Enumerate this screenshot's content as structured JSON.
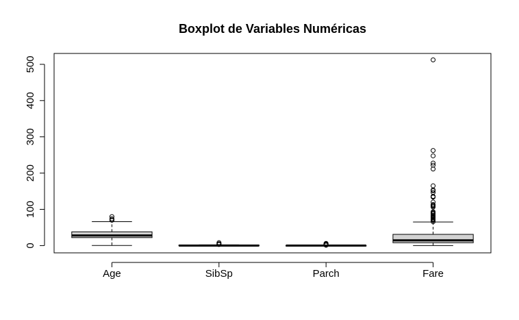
{
  "chart_data": {
    "type": "boxplot",
    "title": "Boxplot de Variables Numéricas",
    "xlabel": "",
    "ylabel": "",
    "ylim": [
      -20,
      530
    ],
    "y_ticks": [
      0,
      100,
      200,
      300,
      400,
      500
    ],
    "y_tick_labels": [
      "0",
      "100",
      "200",
      "300",
      "400",
      "500"
    ],
    "grid": false,
    "legend": "none",
    "box_fill": "#d3d3d3",
    "categories": [
      "Age",
      "SibSp",
      "Parch",
      "Fare"
    ],
    "boxes": [
      {
        "name": "Age",
        "min": 0.42,
        "q1": 22.0,
        "median": 28.0,
        "q3": 38.0,
        "max": 66.0,
        "outliers": [
          70,
          70.5,
          71,
          74,
          80
        ]
      },
      {
        "name": "SibSp",
        "min": 0,
        "q1": 0,
        "median": 0,
        "q3": 1,
        "max": 2,
        "outliers": [
          3,
          4,
          5,
          8
        ]
      },
      {
        "name": "Parch",
        "min": 0,
        "q1": 0,
        "median": 0,
        "q3": 0,
        "max": 0,
        "outliers": [
          1,
          2,
          3,
          4,
          5,
          6
        ]
      },
      {
        "name": "Fare",
        "min": 0,
        "q1": 7.9,
        "median": 14.45,
        "q3": 31.0,
        "max": 65.0,
        "outliers": [
          66,
          69.55,
          71.28,
          73.5,
          76.73,
          77.29,
          78.85,
          79.2,
          81.86,
          83.16,
          86.5,
          89.1,
          90,
          91.08,
          93.5,
          106.43,
          108.9,
          110.88,
          113.28,
          120,
          133.65,
          134.5,
          135.63,
          146.52,
          151.55,
          153.46,
          164.87,
          211.34,
          221.78,
          227.53,
          247.52,
          262.38,
          512.33
        ]
      }
    ]
  }
}
